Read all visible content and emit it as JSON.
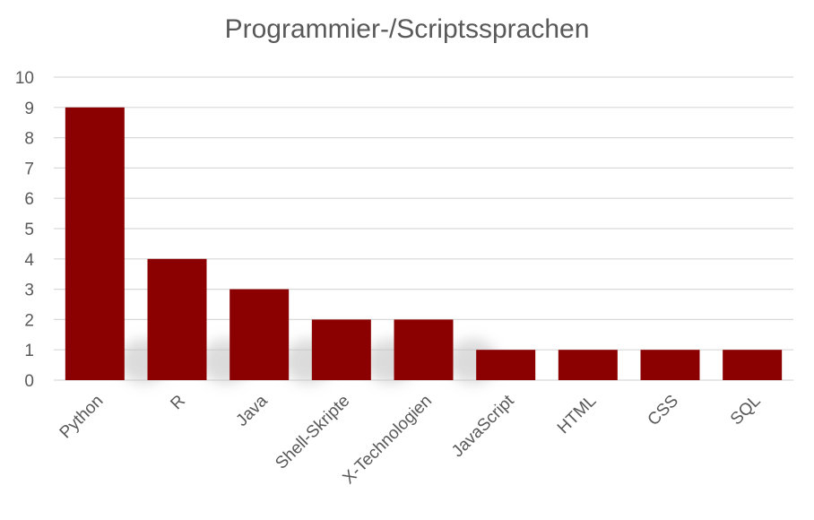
{
  "chart_data": {
    "type": "bar",
    "title": "Programmier-/Scriptssprachen",
    "categories": [
      "Python",
      "R",
      "Java",
      "Shell-Skripte",
      "X-Technologien",
      "JavaScript",
      "HTML",
      "CSS",
      "SQL"
    ],
    "values": [
      9,
      4,
      3,
      2,
      2,
      1,
      1,
      1,
      1
    ],
    "yticks": [
      "0",
      "1",
      "2",
      "3",
      "4",
      "5",
      "6",
      "7",
      "8",
      "9",
      "10"
    ],
    "ylim": [
      0,
      10
    ],
    "grid": true,
    "legend": "none",
    "colors": {
      "bar": "#8B0000",
      "grid": "#D9D9D9",
      "text": "#595959",
      "shadow": "#BFBFBF"
    }
  }
}
